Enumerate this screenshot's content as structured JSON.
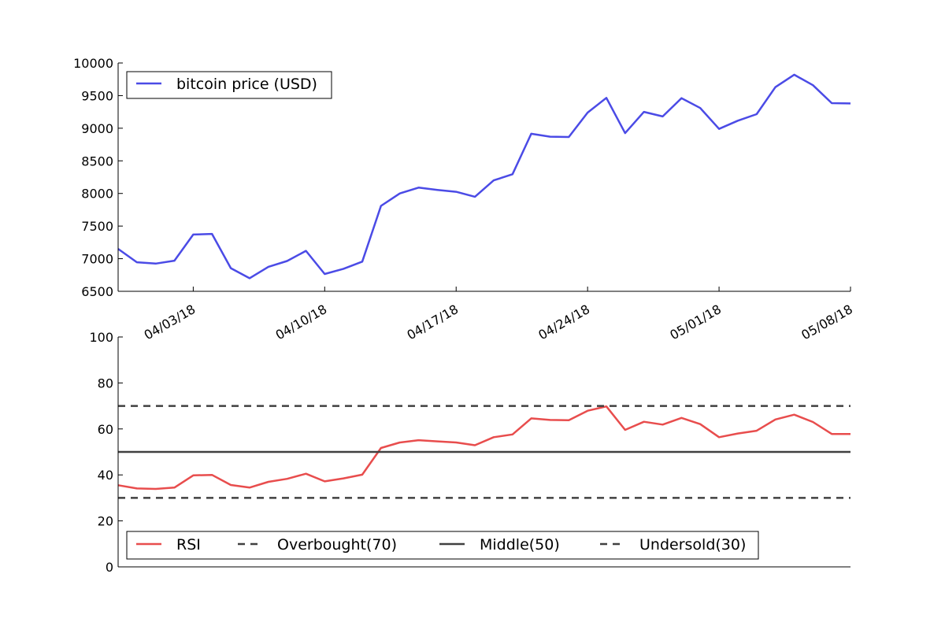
{
  "chart_data": [
    {
      "type": "line",
      "title": "",
      "xlabel": "",
      "ylabel": "",
      "xlim": [
        "2018-03-30",
        "2018-05-08"
      ],
      "ylim": [
        6500,
        10000
      ],
      "yticks": [
        6500,
        7000,
        7500,
        8000,
        8500,
        9000,
        9500,
        10000
      ],
      "xticks": [
        "04/03/18",
        "04/10/18",
        "04/17/18",
        "04/24/18",
        "05/01/18",
        "05/08/18"
      ],
      "legend_position": "top-left",
      "grid": false,
      "series": [
        {
          "name": "bitcoin price (USD)",
          "color": "#4b4be6",
          "x": [
            "2018-03-30",
            "2018-03-31",
            "2018-04-01",
            "2018-04-02",
            "2018-04-03",
            "2018-04-04",
            "2018-04-05",
            "2018-04-06",
            "2018-04-07",
            "2018-04-08",
            "2018-04-09",
            "2018-04-10",
            "2018-04-11",
            "2018-04-12",
            "2018-04-13",
            "2018-04-14",
            "2018-04-15",
            "2018-04-16",
            "2018-04-17",
            "2018-04-18",
            "2018-04-19",
            "2018-04-20",
            "2018-04-21",
            "2018-04-22",
            "2018-04-23",
            "2018-04-24",
            "2018-04-25",
            "2018-04-26",
            "2018-04-27",
            "2018-04-28",
            "2018-04-29",
            "2018-04-30",
            "2018-05-01",
            "2018-05-02",
            "2018-05-03",
            "2018-05-04",
            "2018-05-05",
            "2018-05-06",
            "2018-05-07",
            "2018-05-08"
          ],
          "values": [
            7150,
            6945,
            6925,
            6970,
            7370,
            7380,
            6855,
            6700,
            6875,
            6965,
            7120,
            6765,
            6845,
            6955,
            7810,
            8000,
            8090,
            8055,
            8025,
            7950,
            8200,
            8295,
            8915,
            8870,
            8865,
            9240,
            9465,
            8925,
            9250,
            9180,
            9460,
            9310,
            8990,
            9115,
            9215,
            9630,
            9820,
            9660,
            9385,
            9380
          ]
        }
      ]
    },
    {
      "type": "line",
      "title": "",
      "xlabel": "",
      "ylabel": "",
      "xlim": [
        "2018-03-30",
        "2018-05-08"
      ],
      "ylim": [
        0,
        100
      ],
      "yticks": [
        0,
        20,
        40,
        60,
        80,
        100
      ],
      "legend_position": "bottom",
      "grid": false,
      "series": [
        {
          "name": "RSI",
          "color": "#e84d4d",
          "style": "solid",
          "x": [
            "2018-03-30",
            "2018-03-31",
            "2018-04-01",
            "2018-04-02",
            "2018-04-03",
            "2018-04-04",
            "2018-04-05",
            "2018-04-06",
            "2018-04-07",
            "2018-04-08",
            "2018-04-09",
            "2018-04-10",
            "2018-04-11",
            "2018-04-12",
            "2018-04-13",
            "2018-04-14",
            "2018-04-15",
            "2018-04-16",
            "2018-04-17",
            "2018-04-18",
            "2018-04-19",
            "2018-04-20",
            "2018-04-21",
            "2018-04-22",
            "2018-04-23",
            "2018-04-24",
            "2018-04-25",
            "2018-04-26",
            "2018-04-27",
            "2018-04-28",
            "2018-04-29",
            "2018-04-30",
            "2018-05-01",
            "2018-05-02",
            "2018-05-03",
            "2018-05-04",
            "2018-05-05",
            "2018-05-06",
            "2018-05-07",
            "2018-05-08"
          ],
          "values": [
            35.5,
            34.1,
            33.9,
            34.5,
            39.8,
            40.0,
            35.6,
            34.5,
            37.0,
            38.3,
            40.5,
            37.2,
            38.5,
            40.1,
            51.7,
            54.1,
            55.1,
            54.6,
            54.1,
            52.9,
            56.4,
            57.6,
            64.6,
            63.9,
            63.8,
            67.9,
            69.8,
            59.6,
            63.1,
            61.9,
            64.8,
            62.1,
            56.4,
            58.0,
            59.2,
            64.1,
            66.2,
            63.0,
            57.8,
            57.8
          ]
        },
        {
          "name": "Overbought(70)",
          "color": "#404040",
          "style": "dashed",
          "x": [
            "2018-03-30",
            "2018-05-08"
          ],
          "values": [
            70,
            70
          ]
        },
        {
          "name": "Middle(50)",
          "color": "#404040",
          "style": "solid",
          "x": [
            "2018-03-30",
            "2018-05-08"
          ],
          "values": [
            50,
            50
          ]
        },
        {
          "name": "Undersold(30)",
          "color": "#404040",
          "style": "dashed",
          "x": [
            "2018-03-30",
            "2018-05-08"
          ],
          "values": [
            30,
            30
          ]
        }
      ]
    }
  ]
}
